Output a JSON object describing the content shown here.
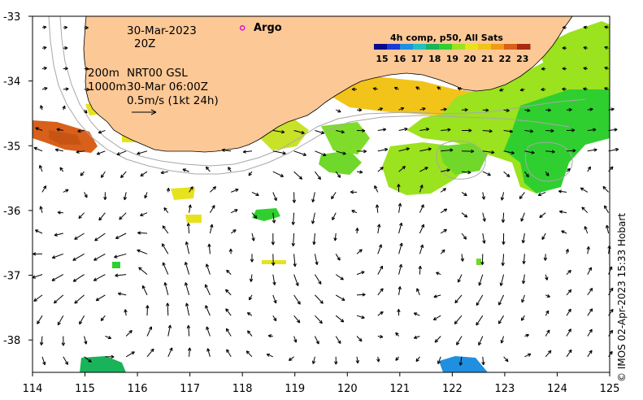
{
  "map": {
    "x_ticks": [
      "114",
      "115",
      "116",
      "117",
      "118",
      "119",
      "120",
      "121",
      "122",
      "123",
      "124",
      "125"
    ],
    "y_ticks": [
      "-33",
      "-34",
      "-35",
      "-36",
      "-37",
      "-38"
    ],
    "x_range": [
      114,
      125
    ],
    "y_range": [
      -38.5,
      -33
    ],
    "date_line1": "30-Mar-2023",
    "date_line2": "20Z",
    "legend_argo": "Argo",
    "contour_200": "200m",
    "contour_1000": "1000m",
    "model_label": "NRT00 GSL",
    "model_time": "30-Mar 06:00Z",
    "scale_arrow_label": "0.5m/s (1kt 24h)",
    "credit": "© IMOS 02-Apr-2023 15:33 Hobart",
    "argo_float": {
      "lon": 118.0,
      "lat": -33.18
    }
  },
  "colorbar": {
    "title": "4h comp, p50, All Sats",
    "labels": [
      "15",
      "16",
      "17",
      "18",
      "19",
      "20",
      "21",
      "22",
      "23"
    ],
    "colors": [
      "#0a0a8c",
      "#1a3cd6",
      "#1f8fe0",
      "#20c0c0",
      "#19b35a",
      "#2fcf30",
      "#9be21f",
      "#e6e21e",
      "#f2c419",
      "#ee9a1a",
      "#d8601a",
      "#a82a10"
    ]
  },
  "colors": {
    "land": "#fcc896",
    "arrow": "#000000",
    "contour": "#a8a8a8",
    "argo": "#e000e0"
  }
}
